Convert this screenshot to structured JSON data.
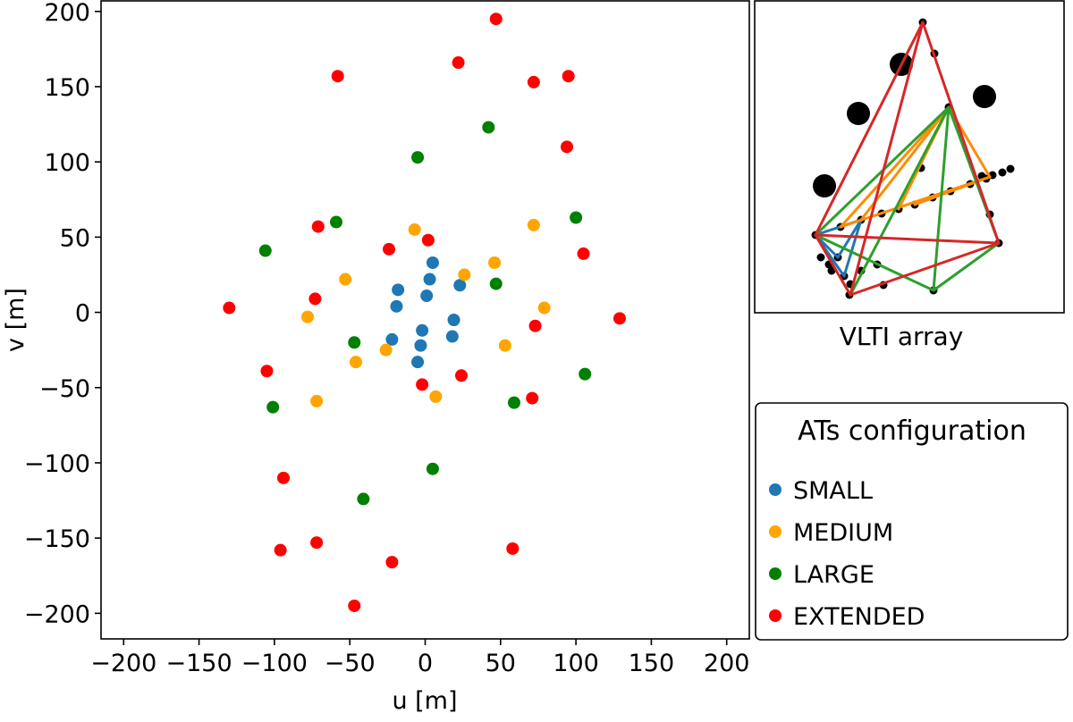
{
  "chart_data": {
    "type": "scatter",
    "title": "",
    "xlabel": "u [m]",
    "ylabel": "v [m]",
    "xlim": [
      -215,
      215
    ],
    "ylim": [
      -217,
      207
    ],
    "xticks": [
      -200,
      -150,
      -100,
      -50,
      0,
      50,
      100,
      150,
      200
    ],
    "yticks": [
      -200,
      -150,
      -100,
      -50,
      0,
      50,
      100,
      150,
      200
    ],
    "grid": false,
    "legend": {
      "title": "ATs configuration",
      "placement": "bottom-right",
      "entries": [
        "SMALL",
        "MEDIUM",
        "LARGE",
        "EXTENDED"
      ]
    },
    "series": [
      {
        "name": "SMALL",
        "color": "#1f77b4",
        "points": [
          [
            5,
            33
          ],
          [
            -18,
            15
          ],
          [
            3,
            22
          ],
          [
            23,
            18
          ],
          [
            1,
            11
          ],
          [
            -19,
            4
          ],
          [
            19,
            -5
          ],
          [
            -2,
            -12
          ],
          [
            -22,
            -18
          ],
          [
            18,
            -16
          ],
          [
            -3,
            -22
          ],
          [
            -5,
            -33
          ]
        ]
      },
      {
        "name": "MEDIUM",
        "color": "#ffa500",
        "points": [
          [
            -7,
            55
          ],
          [
            72,
            58
          ],
          [
            46,
            33
          ],
          [
            26,
            25
          ],
          [
            -53,
            22
          ],
          [
            -78,
            -3
          ],
          [
            79,
            3
          ],
          [
            53,
            -22
          ],
          [
            -26,
            -25
          ],
          [
            -46,
            -33
          ],
          [
            -72,
            -59
          ],
          [
            7,
            -56
          ]
        ]
      },
      {
        "name": "LARGE",
        "color": "#008000",
        "points": [
          [
            42,
            123
          ],
          [
            -5,
            103
          ],
          [
            100,
            63
          ],
          [
            -59,
            60
          ],
          [
            -106,
            41
          ],
          [
            47,
            19
          ],
          [
            -47,
            -20
          ],
          [
            106,
            -41
          ],
          [
            59,
            -60
          ],
          [
            -101,
            -63
          ],
          [
            5,
            -104
          ],
          [
            -41,
            -124
          ]
        ]
      },
      {
        "name": "EXTENDED",
        "color": "#ff0000",
        "points": [
          [
            47,
            195
          ],
          [
            22,
            166
          ],
          [
            -58,
            157
          ],
          [
            95,
            157
          ],
          [
            72,
            153
          ],
          [
            94,
            110
          ],
          [
            -71,
            57
          ],
          [
            2,
            48
          ],
          [
            -24,
            42
          ],
          [
            105,
            39
          ],
          [
            -73,
            9
          ],
          [
            -130,
            3
          ],
          [
            129,
            -4
          ],
          [
            73,
            -9
          ],
          [
            -105,
            -39
          ],
          [
            24,
            -42
          ],
          [
            -2,
            -48
          ],
          [
            71,
            -57
          ],
          [
            -94,
            -110
          ],
          [
            -72,
            -153
          ],
          [
            -96,
            -158
          ],
          [
            58,
            -157
          ],
          [
            -22,
            -166
          ],
          [
            -47,
            -195
          ]
        ]
      }
    ]
  },
  "inset": {
    "caption": "VLTI array",
    "stations": [
      [
        1032,
        25
      ],
      [
        1045,
        60
      ],
      [
        1061,
        120
      ],
      [
        1030,
        188
      ],
      [
        1098,
        197
      ],
      [
        1110,
        196
      ],
      [
        1121,
        193
      ],
      [
        1130,
        189
      ],
      [
        1103,
        200
      ],
      [
        1085,
        206
      ],
      [
        1063,
        214
      ],
      [
        1043,
        221
      ],
      [
        1023,
        229
      ],
      [
        1005,
        234
      ],
      [
        986,
        239
      ],
      [
        963,
        246
      ],
      [
        940,
        254
      ],
      [
        1107,
        240
      ],
      [
        1117,
        272
      ],
      [
        912,
        263
      ],
      [
        918,
        288
      ],
      [
        927,
        296
      ],
      [
        937,
        288
      ],
      [
        930,
        303
      ],
      [
        944,
        309
      ],
      [
        951,
        318
      ],
      [
        963,
        303
      ],
      [
        981,
        296
      ],
      [
        988,
        319
      ],
      [
        1044,
        325
      ],
      [
        950,
        330
      ]
    ],
    "unit_telescopes": [
      [
        1008,
        72
      ],
      [
        960,
        127
      ],
      [
        1101,
        108
      ],
      [
        922,
        208
      ]
    ],
    "baselines": [
      {
        "color": "#1f77b4",
        "pairs": [
          [
            [
              912,
              263
            ],
            [
              963,
              246
            ]
          ],
          [
            [
              912,
              263
            ],
            [
              937,
              288
            ]
          ],
          [
            [
              937,
              288
            ],
            [
              963,
              246
            ]
          ],
          [
            [
              912,
              263
            ],
            [
              944,
              309
            ]
          ],
          [
            [
              944,
              309
            ],
            [
              963,
              246
            ]
          ]
        ]
      },
      {
        "color": "#ff8c00",
        "pairs": [
          [
            [
              940,
              254
            ],
            [
              1061,
              120
            ]
          ],
          [
            [
              940,
              254
            ],
            [
              1107,
              198
            ]
          ],
          [
            [
              1061,
              120
            ],
            [
              1107,
              198
            ]
          ],
          [
            [
              963,
              246
            ],
            [
              1061,
              120
            ]
          ],
          [
            [
              1023,
              229
            ],
            [
              1107,
              198
            ]
          ],
          [
            [
              1005,
              234
            ],
            [
              1061,
              120
            ]
          ]
        ]
      },
      {
        "color": "#2ca02c",
        "pairs": [
          [
            [
              912,
              263
            ],
            [
              1061,
              120
            ]
          ],
          [
            [
              1061,
              120
            ],
            [
              1117,
              272
            ]
          ],
          [
            [
              912,
              263
            ],
            [
              1044,
              325
            ]
          ],
          [
            [
              1044,
              325
            ],
            [
              1061,
              120
            ]
          ],
          [
            [
              1044,
              325
            ],
            [
              1117,
              272
            ]
          ],
          [
            [
              951,
              330
            ],
            [
              1061,
              120
            ]
          ]
        ]
      },
      {
        "color": "#d62728",
        "pairs": [
          [
            [
              912,
              263
            ],
            [
              1032,
              25
            ]
          ],
          [
            [
              1032,
              25
            ],
            [
              1117,
              272
            ]
          ],
          [
            [
              912,
              263
            ],
            [
              1117,
              272
            ]
          ],
          [
            [
              1032,
              25
            ],
            [
              951,
              330
            ]
          ],
          [
            [
              951,
              330
            ],
            [
              1117,
              272
            ]
          ],
          [
            [
              912,
              263
            ],
            [
              951,
              330
            ]
          ]
        ]
      }
    ]
  }
}
